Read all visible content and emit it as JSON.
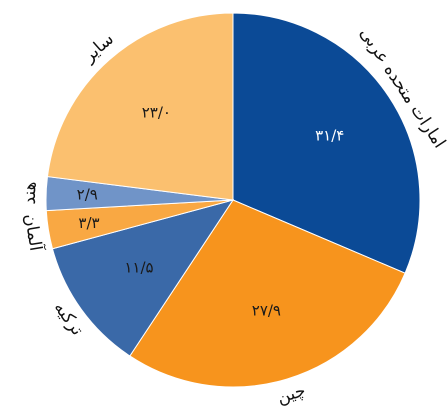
{
  "chart_data": {
    "type": "pie",
    "categories": [
      "امارات متحده عربی",
      "چین",
      "ترکیه",
      "آلمان",
      "هند",
      "سایر"
    ],
    "values": [
      31.4,
      27.9,
      11.5,
      3.3,
      2.9,
      23.0
    ],
    "value_labels": [
      "۳۱/۴",
      "۲۷/۹",
      "۱۱/۵",
      "۳/۳",
      "۲/۹",
      "۲۳/۰"
    ],
    "colors": [
      "#0b4a96",
      "#f7941d",
      "#3a69a8",
      "#f9a843",
      "#7094c8",
      "#fbc06f"
    ]
  }
}
